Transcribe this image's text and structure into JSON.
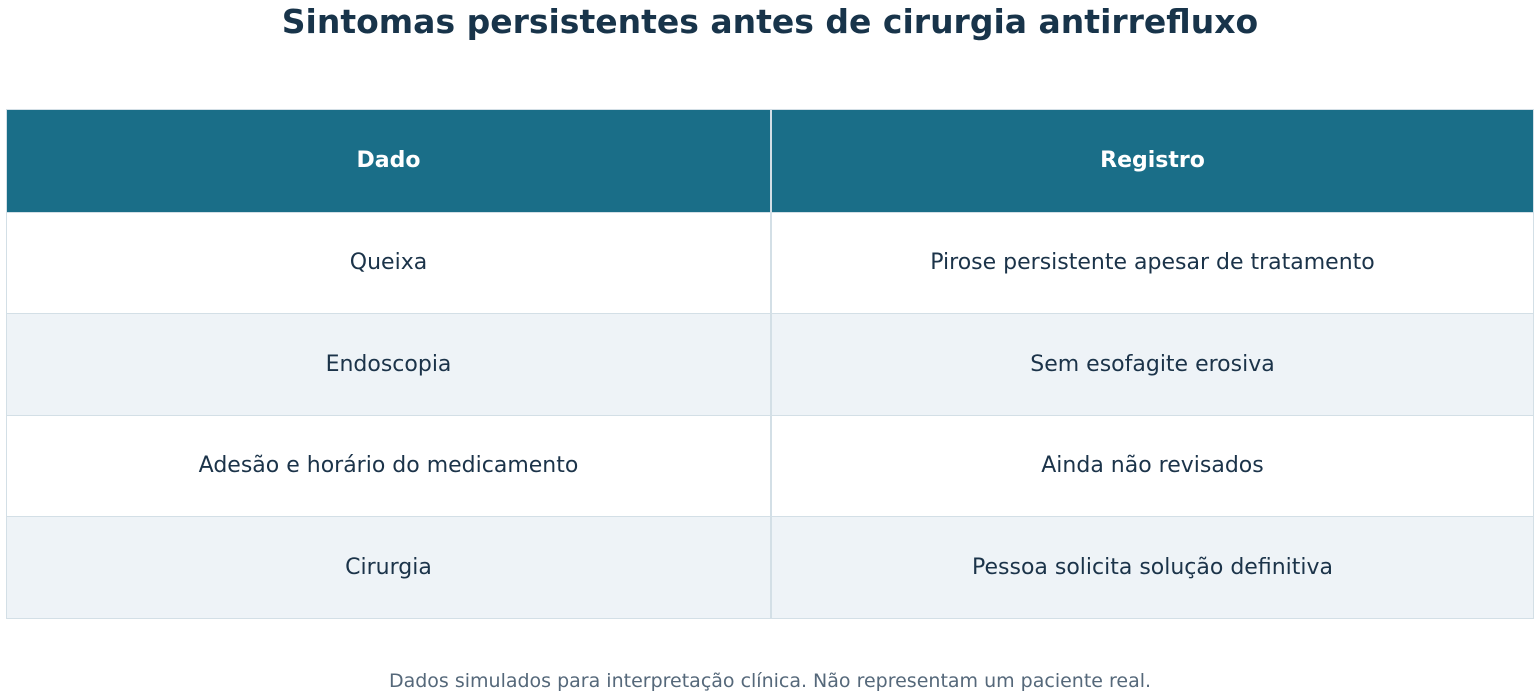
{
  "title": "Sintomas persistentes antes de cirurgia antirrefluxo",
  "table": {
    "headers": [
      "Dado",
      "Registro"
    ],
    "rows": [
      [
        "Queixa",
        "Pirose persistente apesar de tratamento"
      ],
      [
        "Endoscopia",
        "Sem esofagite erosiva"
      ],
      [
        "Adesão e horário do medicamento",
        "Ainda não revisados"
      ],
      [
        "Cirurgia",
        "Pessoa solicita solução definitiva"
      ]
    ]
  },
  "footnote": "Dados simulados para interpretação clínica. Não representam um paciente real.",
  "colors": {
    "header_bg": "#1a6e88",
    "stripe_bg": "#eef3f7",
    "text": "#1b3349"
  }
}
